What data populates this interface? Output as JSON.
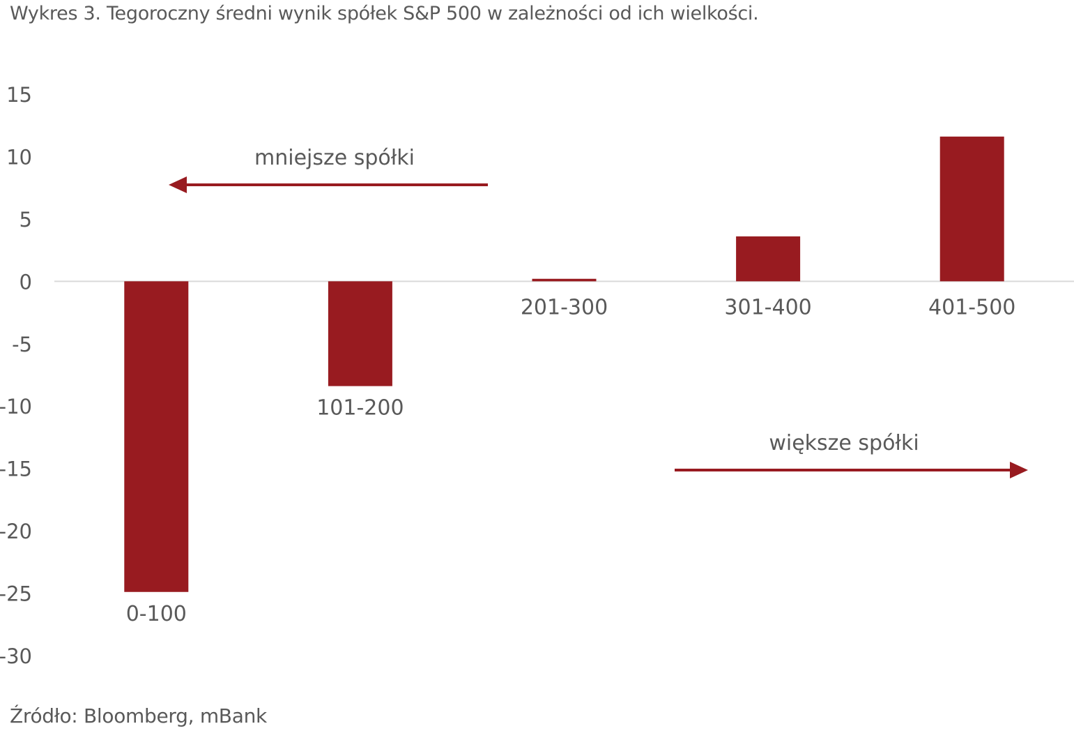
{
  "title": "Wykres 3. Tegoroczny średni wynik spółek S&P 500 w zależności od ich wielkości.",
  "source": "Źródło: Bloomberg, mBank",
  "colors": {
    "bar": "#981b20",
    "arrow": "#981b20",
    "axis": "#d9d9d9",
    "text": "#595959"
  },
  "annotations": {
    "smaller": "mniejsze spółki",
    "larger": "większe spółki"
  },
  "chart_data": {
    "type": "bar",
    "title": "Wykres 3. Tegoroczny średni wynik spółek S&P 500 w zależności od ich wielkości.",
    "categories": [
      "0-100",
      "101-200",
      "201-300",
      "301-400",
      "401-500"
    ],
    "values": [
      -24.9,
      -8.4,
      0.2,
      3.6,
      11.6
    ],
    "ylim": [
      -30,
      15
    ],
    "yticks": [
      15,
      10,
      5,
      0,
      -5,
      -10,
      -15,
      -20,
      -25,
      -30
    ],
    "xlabel": "",
    "ylabel": "",
    "grid": false,
    "legend": "none",
    "annotations": [
      "mniejsze spółki",
      "większe spółki"
    ]
  }
}
